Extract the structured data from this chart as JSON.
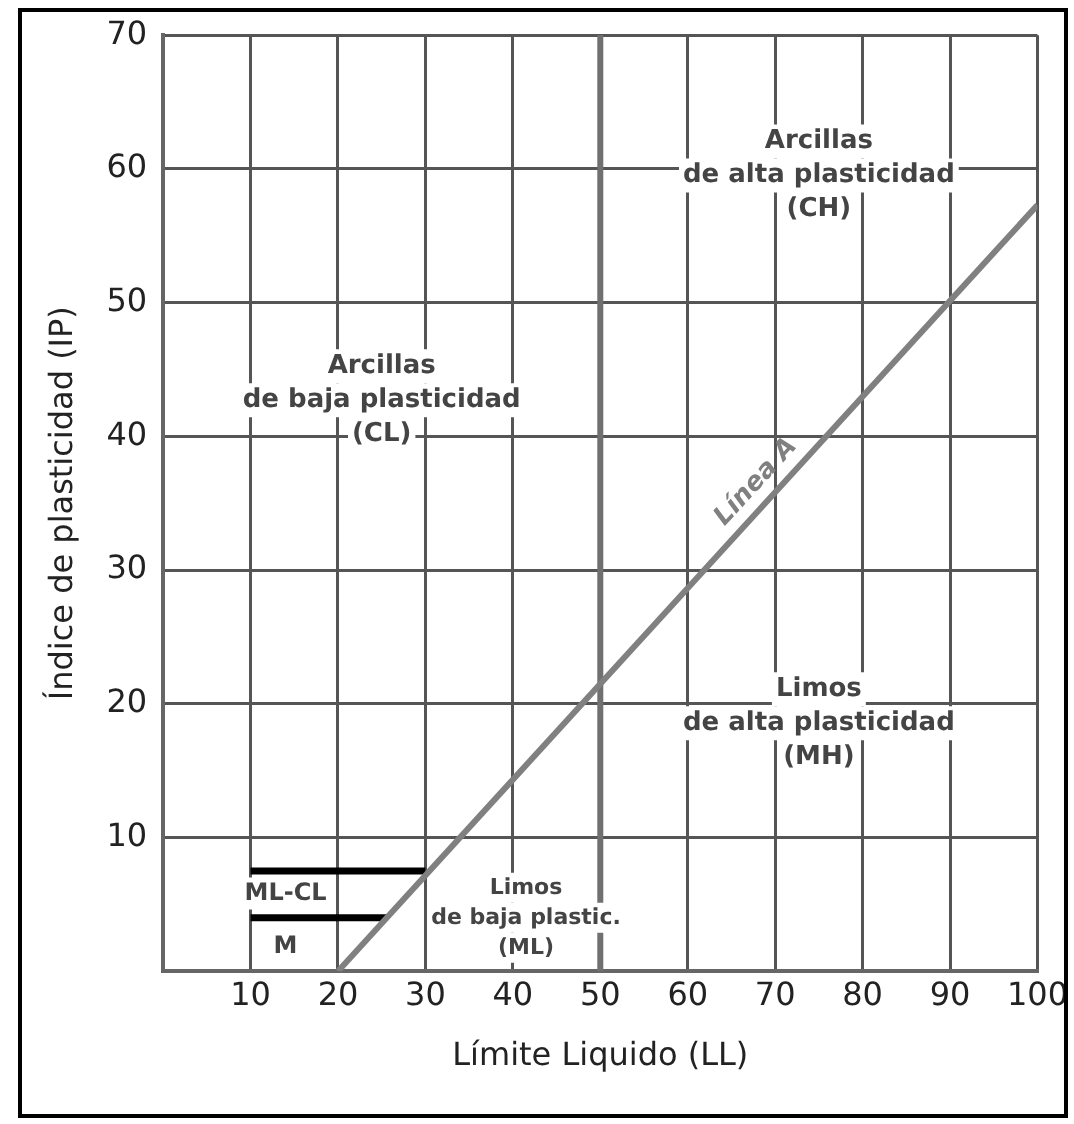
{
  "chart_data": {
    "type": "line",
    "xlabel": "Límite Liquido (LL)",
    "ylabel": "Índice de plasticidad (IP)",
    "series": [
      {
        "name": "Línea A",
        "color": "#808080",
        "x": [
          20,
          100
        ],
        "values": [
          0,
          57.3
        ]
      },
      {
        "color": "#000000",
        "x": [
          10,
          30
        ],
        "values": [
          7.5,
          7.5
        ]
      },
      {
        "color": "#000000",
        "x": [
          10,
          25.5
        ],
        "values": [
          4,
          4
        ]
      }
    ],
    "xlim": [
      0,
      100
    ],
    "ylim": [
      0,
      70
    ],
    "xticks": [
      10,
      20,
      30,
      40,
      50,
      60,
      70,
      80,
      90,
      100
    ],
    "yticks": [
      10,
      20,
      30,
      40,
      50,
      60,
      70
    ],
    "grid": true,
    "legend": false,
    "marker": "none",
    "line_style": "solid",
    "ref_lines": [
      {
        "axis": "x",
        "value": 50,
        "color": "#707070"
      }
    ],
    "annotations": [
      "Arcillas\nde baja plasticidad\n(CL)",
      "Arcillas\nde alta plasticidad\n(CH)",
      "Limos\nde alta plasticidad\n(MH)",
      "Limos\nde baja plastic.\n(ML)",
      "ML-CL",
      "M"
    ]
  }
}
